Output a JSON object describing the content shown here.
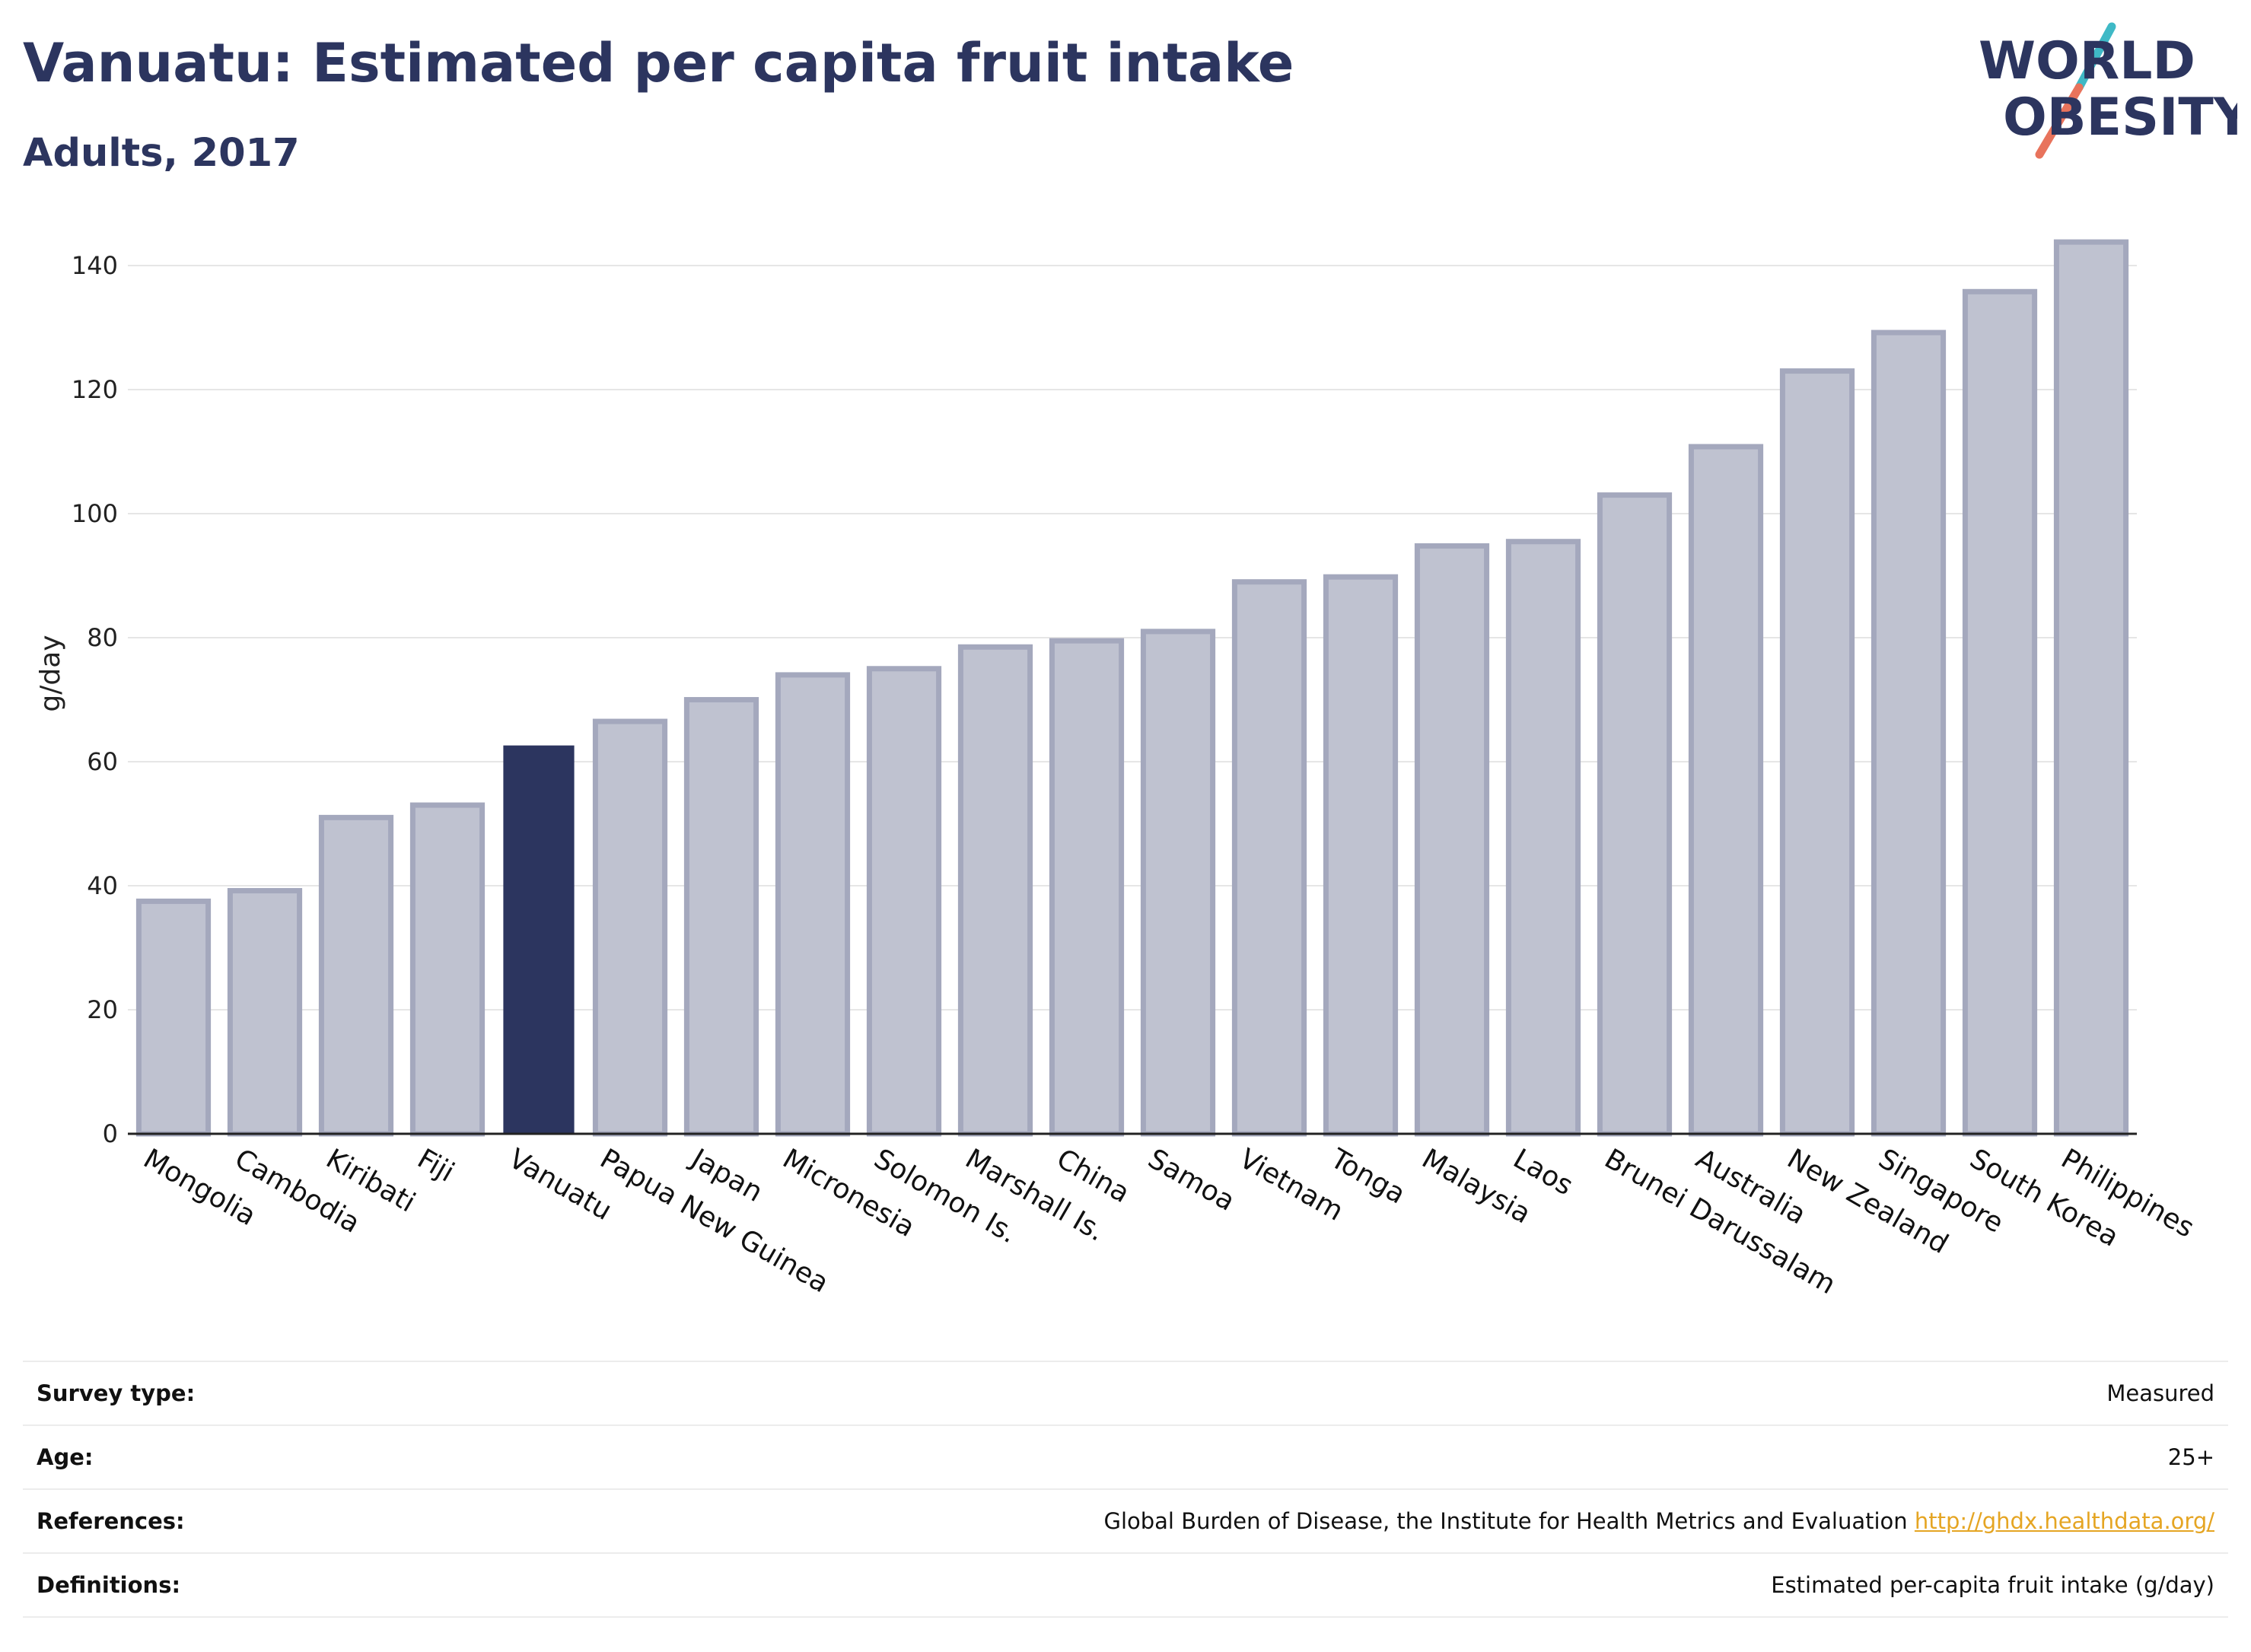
{
  "header": {
    "title": "Vanuatu: Estimated per capita fruit intake",
    "subtitle": "Adults, 2017"
  },
  "logo": {
    "text_line1": "WORLD",
    "text_line2": "OBESITY",
    "colors": {
      "text": "#2c355f",
      "slash_top": "#3fb9c6",
      "slash_bottom": "#e8735c"
    }
  },
  "chart_data": {
    "type": "bar",
    "title": "Vanuatu: Estimated per capita fruit intake",
    "subtitle": "Adults, 2017",
    "xlabel": "",
    "ylabel": "g/day",
    "ylim": [
      0,
      147
    ],
    "yticks": [
      0,
      20,
      40,
      60,
      80,
      100,
      120,
      140
    ],
    "grid": true,
    "highlight": "Vanuatu",
    "colors": {
      "highlight": "#2c355f",
      "bar_fill": "#bfc2d0",
      "bar_stroke": "#a4a8bd"
    },
    "categories": [
      "Mongolia",
      "Cambodia",
      "Kiribati",
      "Fiji",
      "Vanuatu",
      "Papua New Guinea",
      "Japan",
      "Micronesia",
      "Solomon Is.",
      "Marshall Is.",
      "China",
      "Samoa",
      "Vietnam",
      "Tonga",
      "Malaysia",
      "Laos",
      "Brunei Darussalam",
      "Australia",
      "New Zealand",
      "Singapore",
      "South Korea",
      "Philippines"
    ],
    "values": [
      37.5,
      39.2,
      51,
      53,
      62.5,
      66.5,
      70,
      74,
      75,
      78.5,
      79.5,
      81,
      89,
      89.8,
      94.8,
      95.5,
      103,
      110.8,
      123,
      129.2,
      135.8,
      143.8
    ]
  },
  "meta": {
    "rows": [
      {
        "label": "Survey type:",
        "value": "Measured"
      },
      {
        "label": "Age:",
        "value": "25+"
      },
      {
        "label": "References:",
        "value": "Global Burden of Disease, the Institute for Health Metrics and Evaluation",
        "link": "http://ghdx.healthdata.org/"
      },
      {
        "label": "Definitions:",
        "value": "Estimated per-capita fruit intake (g/day)"
      }
    ]
  }
}
